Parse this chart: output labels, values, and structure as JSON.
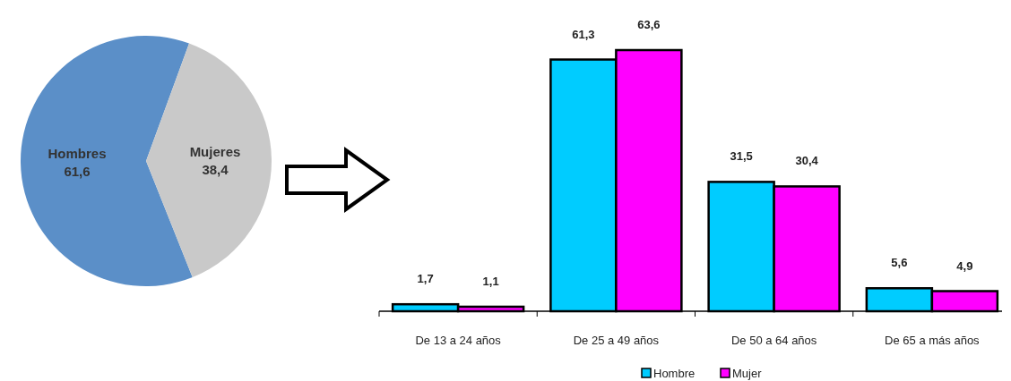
{
  "chart_data": [
    {
      "type": "pie",
      "categories": [
        "Hombres",
        "Mujeres"
      ],
      "values": [
        61.6,
        38.4
      ],
      "colors": [
        "#5b8fc8",
        "#c9c9c9"
      ],
      "value_labels": [
        "61,6",
        "38,4"
      ]
    },
    {
      "type": "bar",
      "categories": [
        "De 13 a 24 años",
        "De 25 a 49 años",
        "De 50 a 64 años",
        "De 65 a más años"
      ],
      "series": [
        {
          "name": "Hombre",
          "color": "#00ccff",
          "values": [
            1.7,
            61.3,
            31.5,
            5.6
          ],
          "value_labels": [
            "1,7",
            "61,3",
            "31,5",
            "5,6"
          ]
        },
        {
          "name": "Mujer",
          "color": "#ff00ff",
          "values": [
            1.1,
            63.6,
            30.4,
            4.9
          ],
          "value_labels": [
            "1,1",
            "63,6",
            "30,4",
            "4,9"
          ]
        }
      ],
      "relative": false,
      "legend": "bottom"
    }
  ]
}
